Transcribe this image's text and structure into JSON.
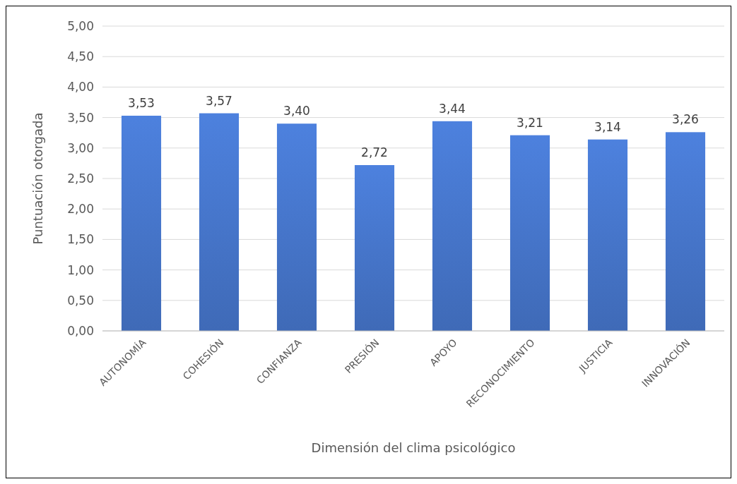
{
  "chart_data": {
    "type": "bar",
    "xlabel": "Dimensión del clima psicológico",
    "ylabel": "Puntuación otorgada",
    "categories": [
      "AUTONOMÍA",
      "COHESIÓN",
      "CONFIANZA",
      "PRESIÓN",
      "APOYO",
      "RECONOCIMIENTO",
      "JUSTICIA",
      "INNOVACIÓN"
    ],
    "values": [
      3.53,
      3.57,
      3.4,
      2.72,
      3.44,
      3.21,
      3.14,
      3.26
    ],
    "value_labels": [
      "3,53",
      "3,57",
      "3,40",
      "2,72",
      "3,44",
      "3,21",
      "3,14",
      "3,26"
    ],
    "color": "#4472c4",
    "ylim": [
      0,
      5
    ],
    "yticks": [
      {
        "value": 0,
        "label": "0,00"
      },
      {
        "value": 0.5,
        "label": "0,50"
      },
      {
        "value": 1,
        "label": "1,00"
      },
      {
        "value": 1.5,
        "label": "1,50"
      },
      {
        "value": 2,
        "label": "2,00"
      },
      {
        "value": 2.5,
        "label": "2,50"
      },
      {
        "value": 3,
        "label": "3,00"
      },
      {
        "value": 3.5,
        "label": "3,50"
      },
      {
        "value": 4,
        "label": "4,00"
      },
      {
        "value": 4.5,
        "label": "4,50"
      },
      {
        "value": 5,
        "label": "5,00"
      }
    ],
    "grid": "y"
  }
}
